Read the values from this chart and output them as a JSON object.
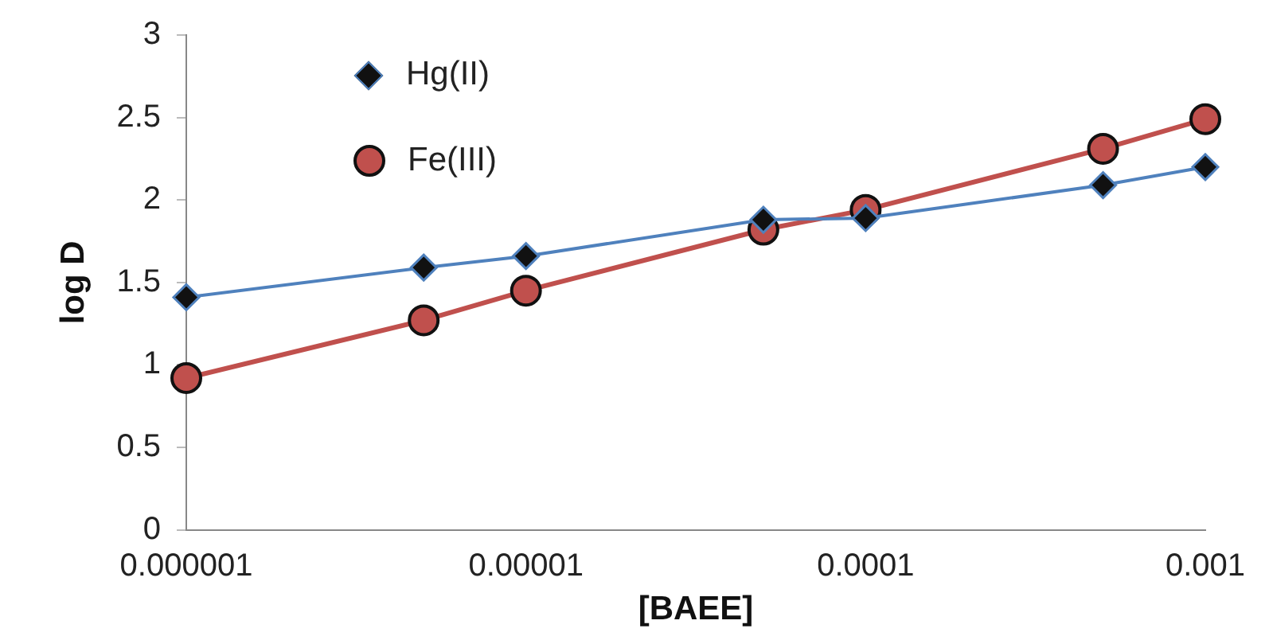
{
  "chart_data": {
    "type": "line",
    "xlabel": "[BAEE]",
    "ylabel": "log D",
    "log": "x",
    "x": [
      1e-06,
      5e-06,
      1e-05,
      5e-05,
      0.0001,
      0.0005,
      0.001
    ],
    "series": [
      {
        "name": "Hg(II)",
        "color": "#4f81bd",
        "marker": "diamond",
        "values": [
          1.41,
          1.59,
          1.66,
          1.88,
          1.89,
          2.09,
          2.2
        ]
      },
      {
        "name": "Fe(III)",
        "color": "#c0504d",
        "marker": "circle",
        "values": [
          0.92,
          1.27,
          1.45,
          1.82,
          1.94,
          2.31,
          2.49
        ]
      }
    ],
    "xlim": [
      1e-06,
      0.001
    ],
    "xticks": [
      {
        "value": 1e-06,
        "label": "0.000001"
      },
      {
        "value": 1e-05,
        "label": "0.00001"
      },
      {
        "value": 0.0001,
        "label": "0.0001"
      },
      {
        "value": 0.001,
        "label": "0.001"
      }
    ],
    "ylim": [
      0,
      3
    ],
    "yticks": [
      0,
      0.5,
      1,
      1.5,
      2,
      2.5,
      3
    ],
    "grid": false,
    "legend": "top left",
    "line_style": "solid"
  }
}
